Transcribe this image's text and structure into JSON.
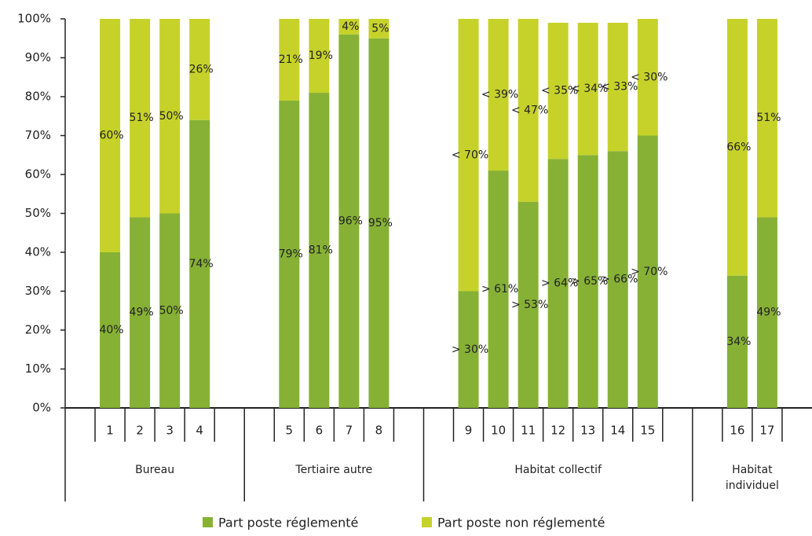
{
  "chart_data": {
    "type": "stacked_bar",
    "categories": [
      null,
      "1",
      "2",
      "3",
      "4",
      null,
      null,
      "5",
      "6",
      "7",
      "8",
      null,
      null,
      "9",
      "10",
      "11",
      "12",
      "13",
      "14",
      "15",
      null,
      null,
      "16",
      "17",
      null
    ],
    "groups": [
      "Bureau",
      "Tertiaire autre",
      "Habitat collectif",
      "Habitat individuel"
    ],
    "series": [
      {
        "name": "Part poste réglementé",
        "color": "#86b135",
        "values": [
          null,
          40,
          49,
          50,
          74,
          null,
          null,
          79,
          81,
          96,
          95,
          null,
          null,
          30,
          61,
          53,
          64,
          65,
          66,
          70,
          null,
          null,
          34,
          49,
          null
        ],
        "value_labels": [
          null,
          "40%",
          "49%",
          "50%",
          "74%",
          null,
          null,
          "79%",
          "81%",
          "96%",
          "95%",
          null,
          null,
          "> 30%",
          "> 61%",
          "> 53%",
          "> 64%",
          "> 65%",
          "> 66%",
          "> 70%",
          null,
          null,
          "34%",
          "49%",
          null
        ]
      },
      {
        "name": "Part poste non réglementé",
        "color": "#c6d22a",
        "values": [
          null,
          60,
          51,
          50,
          26,
          null,
          null,
          21,
          19,
          4,
          5,
          null,
          null,
          70,
          39,
          47,
          35,
          34,
          33,
          30,
          null,
          null,
          66,
          51,
          null
        ],
        "value_labels": [
          null,
          "60%",
          "51%",
          "50%",
          "26%",
          null,
          null,
          "21%",
          "19%",
          "4%",
          "5%",
          null,
          null,
          "< 70%",
          "< 39%",
          "< 47%",
          "< 35%",
          "< 34%",
          "< 33%",
          "< 30%",
          null,
          null,
          "66%",
          "51%",
          null
        ]
      }
    ],
    "ylim": [
      0,
      100
    ],
    "yticks": [
      {
        "value": 0,
        "label": "0%"
      },
      {
        "value": 10,
        "label": "10%"
      },
      {
        "value": 20,
        "label": "20%"
      },
      {
        "value": 30,
        "label": "30%"
      },
      {
        "value": 40,
        "label": "40%"
      },
      {
        "value": 50,
        "label": "50%"
      },
      {
        "value": 60,
        "label": "60%"
      },
      {
        "value": 70,
        "label": "70%"
      },
      {
        "value": 80,
        "label": "80%"
      },
      {
        "value": 90,
        "label": "90%"
      },
      {
        "value": 100,
        "label": "100%"
      }
    ]
  }
}
